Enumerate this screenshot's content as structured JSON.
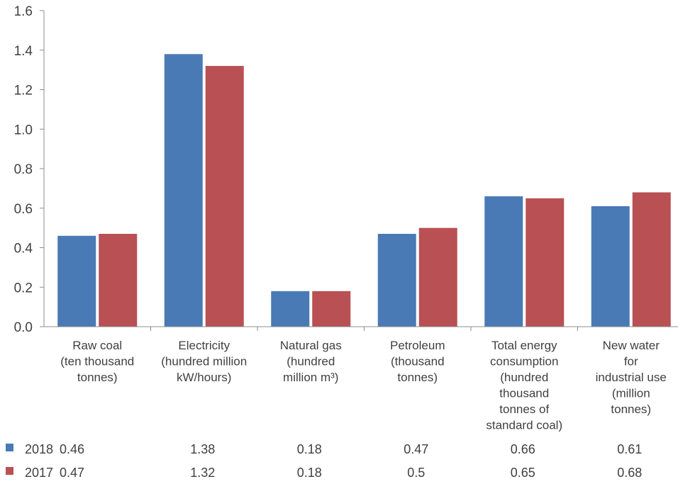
{
  "chart_data": {
    "type": "bar",
    "title": "",
    "xlabel": "",
    "ylabel": "",
    "ylim": [
      0,
      1.6
    ],
    "yticks": [
      "0.0",
      "0.2",
      "0.4",
      "0.6",
      "0.8",
      "1.0",
      "1.2",
      "1.4",
      "1.6"
    ],
    "grid": false,
    "legend_position": "bottom-left (as data table rows)",
    "categories": [
      [
        "Raw coal",
        "(ten thousand",
        "tonnes)"
      ],
      [
        "Electricity",
        "(hundred million",
        "kW/hours)"
      ],
      [
        "Natural gas",
        "(hundred",
        "million m³)"
      ],
      [
        "Petroleum",
        "(thousand",
        "tonnes)"
      ],
      [
        "Total energy",
        "consumption",
        "(hundred",
        "thousand",
        "tonnes of",
        "standard coal)"
      ],
      [
        "New water",
        "for",
        "industrial use",
        "(million",
        "tonnes)"
      ]
    ],
    "series": [
      {
        "name": "2018",
        "color": "#4a7ab5",
        "values": [
          0.46,
          1.38,
          0.18,
          0.47,
          0.66,
          0.61
        ],
        "labels": [
          "0.46",
          "1.38",
          "0.18",
          "0.47",
          "0.66",
          "0.61"
        ]
      },
      {
        "name": "2017",
        "color": "#b85054",
        "values": [
          0.47,
          1.32,
          0.18,
          0.5,
          0.65,
          0.68
        ],
        "labels": [
          "0.47",
          "1.32",
          "0.18",
          "0.5",
          "0.65",
          "0.68"
        ]
      }
    ]
  }
}
